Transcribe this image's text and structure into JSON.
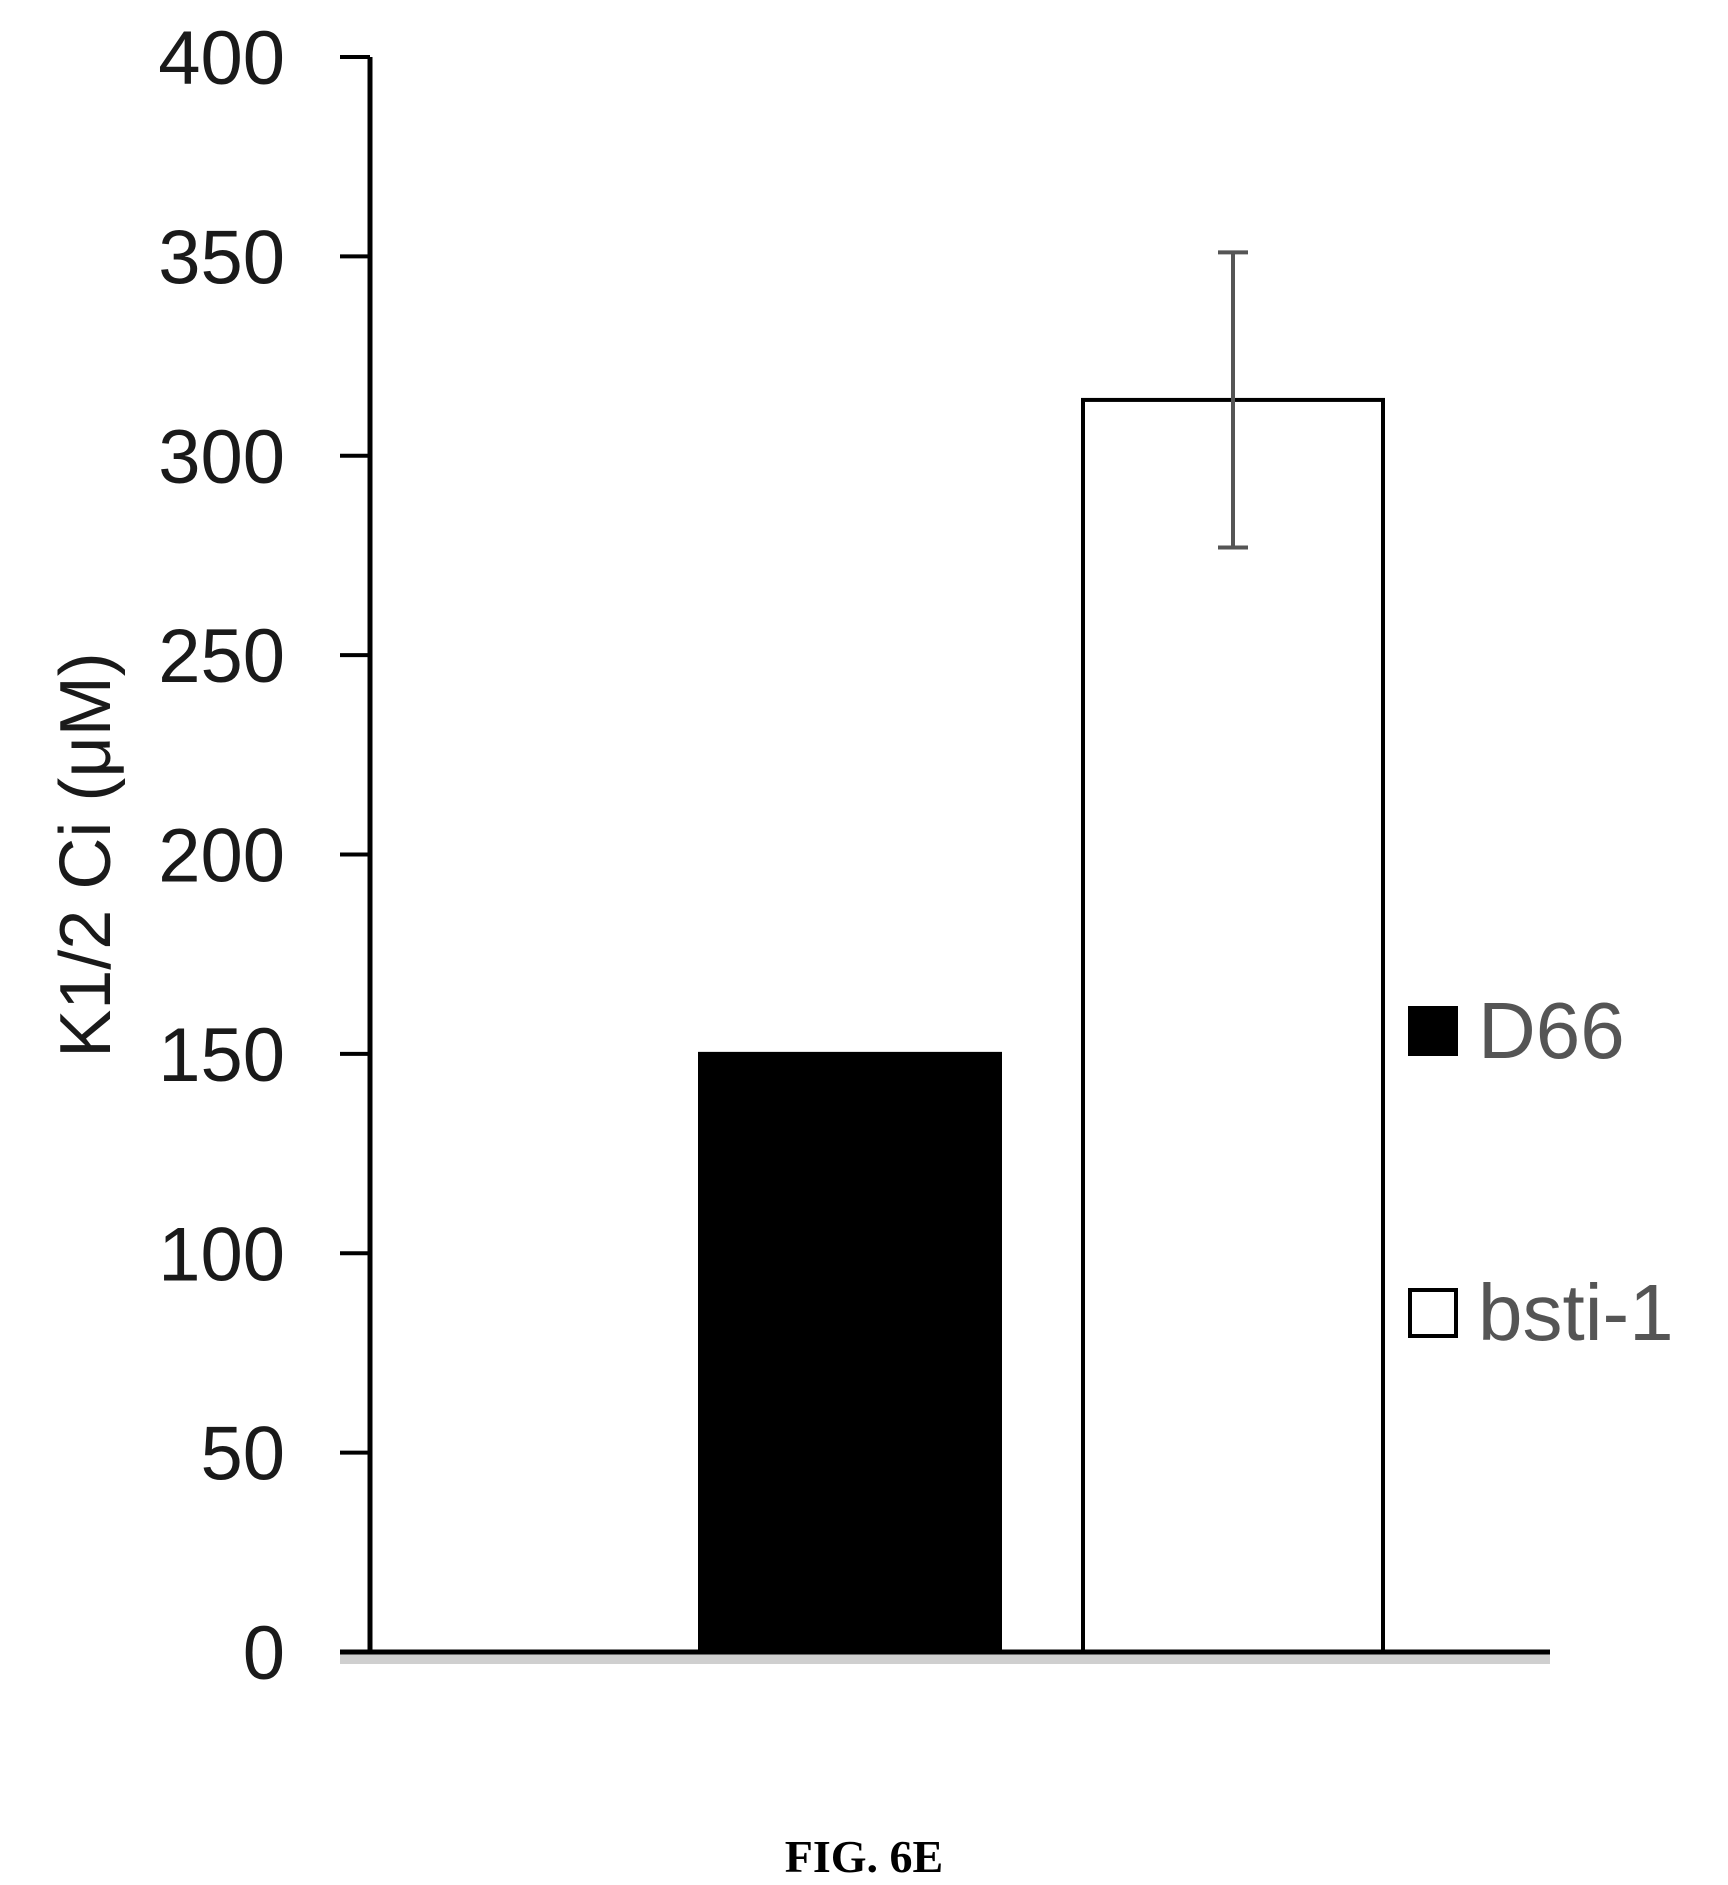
{
  "chart_data": {
    "type": "bar",
    "ylabel": "K1/2 Ci (μM)",
    "ylim": [
      0,
      400
    ],
    "yticks": [
      0,
      50,
      100,
      150,
      200,
      250,
      300,
      350,
      400
    ],
    "yticklabels": [
      "0",
      "50",
      "100",
      "150",
      "200",
      "250",
      "300",
      "350",
      "400"
    ],
    "series": [
      {
        "name": "D66",
        "value": 150,
        "error": 0,
        "fill": "#000000"
      },
      {
        "name": "bsti-1",
        "value": 314,
        "error": 37,
        "fill": "#ffffff"
      }
    ],
    "legend_position": "right",
    "grid": false
  },
  "caption": "FIG. 6E"
}
